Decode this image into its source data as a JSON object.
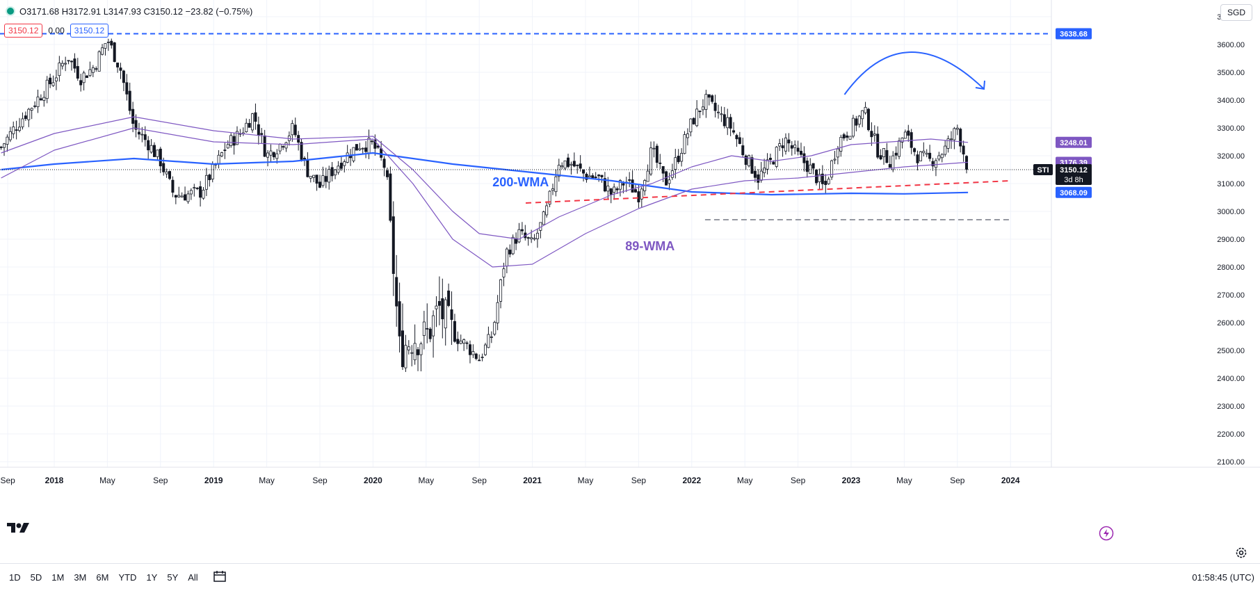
{
  "header": {
    "ohlc_text": "O3171.68 H3172.91 L3147.93 C3150.12 −23.82 (−0.75%)",
    "chip_left": "3150.12",
    "chip_mid": "0.00",
    "chip_right": "3150.12",
    "currency": "SGD"
  },
  "bottom": {
    "ranges": [
      "1D",
      "5D",
      "1M",
      "3M",
      "6M",
      "YTD",
      "1Y",
      "5Y",
      "All"
    ],
    "clock": "01:58:45 (UTC)"
  },
  "chart_data": {
    "type": "candlestick",
    "symbol": "STI",
    "ylim": [
      2080,
      3760
    ],
    "y_ticks": [
      2100,
      2200,
      2300,
      2400,
      2500,
      2600,
      2700,
      2800,
      2900,
      3000,
      3100,
      3200,
      3300,
      3400,
      3500,
      3600,
      3700
    ],
    "x_ticks": [
      {
        "label": "Sep",
        "t": -3.5
      },
      {
        "label": "2018",
        "t": 0
      },
      {
        "label": "May",
        "t": 4
      },
      {
        "label": "Sep",
        "t": 8
      },
      {
        "label": "2019",
        "t": 12
      },
      {
        "label": "May",
        "t": 16
      },
      {
        "label": "Sep",
        "t": 20
      },
      {
        "label": "2020",
        "t": 24
      },
      {
        "label": "May",
        "t": 28
      },
      {
        "label": "Sep",
        "t": 32
      },
      {
        "label": "2021",
        "t": 36
      },
      {
        "label": "May",
        "t": 40
      },
      {
        "label": "Sep",
        "t": 44
      },
      {
        "label": "2022",
        "t": 48
      },
      {
        "label": "May",
        "t": 52
      },
      {
        "label": "Sep",
        "t": 56
      },
      {
        "label": "2023",
        "t": 60
      },
      {
        "label": "May",
        "t": 64
      },
      {
        "label": "Sep",
        "t": 68
      },
      {
        "label": "2024",
        "t": 72
      }
    ],
    "x_tick_labels_note": "t = months since Jan 2018",
    "close_path": [
      [
        -4,
        3230
      ],
      [
        -3,
        3300
      ],
      [
        -2,
        3360
      ],
      [
        -1,
        3420
      ],
      [
        0,
        3480
      ],
      [
        1,
        3560
      ],
      [
        2,
        3480
      ],
      [
        3,
        3520
      ],
      [
        4,
        3620
      ],
      [
        5,
        3510
      ],
      [
        6,
        3300
      ],
      [
        7,
        3250
      ],
      [
        8,
        3180
      ],
      [
        9,
        3060
      ],
      [
        10,
        3060
      ],
      [
        11,
        3070
      ],
      [
        12,
        3150
      ],
      [
        13,
        3240
      ],
      [
        14,
        3280
      ],
      [
        15,
        3350
      ],
      [
        16,
        3200
      ],
      [
        17,
        3240
      ],
      [
        18,
        3300
      ],
      [
        19,
        3150
      ],
      [
        20,
        3090
      ],
      [
        21,
        3150
      ],
      [
        22,
        3200
      ],
      [
        23,
        3240
      ],
      [
        24,
        3240
      ],
      [
        25,
        3150
      ],
      [
        26,
        2500
      ],
      [
        27,
        2550
      ],
      [
        28,
        2550
      ],
      [
        29,
        2650
      ],
      [
        30,
        2560
      ],
      [
        31,
        2520
      ],
      [
        32,
        2470
      ],
      [
        33,
        2560
      ],
      [
        34,
        2850
      ],
      [
        35,
        2920
      ],
      [
        36,
        2880
      ],
      [
        37,
        2990
      ],
      [
        38,
        3180
      ],
      [
        39,
        3170
      ],
      [
        40,
        3130
      ],
      [
        41,
        3120
      ],
      [
        42,
        3060
      ],
      [
        43,
        3110
      ],
      [
        44,
        3060
      ],
      [
        45,
        3220
      ],
      [
        46,
        3100
      ],
      [
        47,
        3200
      ],
      [
        48,
        3320
      ],
      [
        49,
        3400
      ],
      [
        50,
        3350
      ],
      [
        51,
        3300
      ],
      [
        52,
        3200
      ],
      [
        53,
        3120
      ],
      [
        54,
        3180
      ],
      [
        55,
        3260
      ],
      [
        56,
        3200
      ],
      [
        57,
        3150
      ],
      [
        58,
        3080
      ],
      [
        59,
        3250
      ],
      [
        60,
        3300
      ],
      [
        61,
        3360
      ],
      [
        62,
        3220
      ],
      [
        63,
        3180
      ],
      [
        64,
        3280
      ],
      [
        65,
        3200
      ],
      [
        66,
        3180
      ],
      [
        67,
        3220
      ],
      [
        68,
        3300
      ],
      [
        68.8,
        3150.12
      ]
    ],
    "series": [
      {
        "name": "200-WMA",
        "color": "#2962ff",
        "width": 2.2,
        "points": [
          [
            -4,
            3150
          ],
          [
            0,
            3170
          ],
          [
            6,
            3190
          ],
          [
            12,
            3170
          ],
          [
            18,
            3180
          ],
          [
            24,
            3210
          ],
          [
            30,
            3170
          ],
          [
            36,
            3140
          ],
          [
            42,
            3110
          ],
          [
            48,
            3070
          ],
          [
            54,
            3060
          ],
          [
            60,
            3065
          ],
          [
            64,
            3063
          ],
          [
            68.8,
            3068.09
          ]
        ]
      },
      {
        "name": "89-WMA",
        "color": "#7e57c2",
        "width": 1.2,
        "points": [
          [
            -4,
            3120
          ],
          [
            0,
            3220
          ],
          [
            6,
            3300
          ],
          [
            12,
            3250
          ],
          [
            18,
            3240
          ],
          [
            24,
            3260
          ],
          [
            27,
            3100
          ],
          [
            30,
            2900
          ],
          [
            33,
            2800
          ],
          [
            36,
            2810
          ],
          [
            40,
            2920
          ],
          [
            44,
            3010
          ],
          [
            48,
            3080
          ],
          [
            52,
            3110
          ],
          [
            56,
            3120
          ],
          [
            60,
            3140
          ],
          [
            64,
            3160
          ],
          [
            68.8,
            3176.39
          ]
        ]
      },
      {
        "name": "",
        "color": "#7e57c2",
        "width": 1.2,
        "points": [
          [
            -4,
            3210
          ],
          [
            0,
            3280
          ],
          [
            6,
            3340
          ],
          [
            12,
            3290
          ],
          [
            18,
            3260
          ],
          [
            24,
            3270
          ],
          [
            27,
            3150
          ],
          [
            30,
            3000
          ],
          [
            32,
            2920
          ],
          [
            35,
            2900
          ],
          [
            38,
            2980
          ],
          [
            42,
            3060
          ],
          [
            45,
            3100
          ],
          [
            48,
            3160
          ],
          [
            51,
            3200
          ],
          [
            54,
            3180
          ],
          [
            57,
            3200
          ],
          [
            60,
            3240
          ],
          [
            63,
            3250
          ],
          [
            66,
            3260
          ],
          [
            68.8,
            3248.01
          ]
        ]
      }
    ],
    "price_labels": [
      {
        "value": "3638.68",
        "color": "#2962ff"
      },
      {
        "value": "3248.01",
        "color": "#7e57c2"
      },
      {
        "value": "3176.39",
        "color": "#7e57c2"
      },
      {
        "value": "3150.12",
        "color": "#131722",
        "sub": "3d 8h",
        "tag": "STI"
      },
      {
        "value": "3068.09",
        "color": "#2962ff"
      }
    ],
    "drawings": {
      "resistance_level": 3638.68,
      "support_dashed": {
        "t0": 49,
        "t1": 72,
        "value": 2970
      },
      "trendline": {
        "t0": 35.5,
        "v0": 3030,
        "t1": 72,
        "v1": 3110
      },
      "arrow_arc": {
        "t0": 59.5,
        "t_peak": 64,
        "t1": 70,
        "v0": 3420,
        "v_peak": 3575,
        "v1": 3440
      }
    },
    "annotations": [
      {
        "text": "200-WMA",
        "t": 33.0,
        "value": 3090,
        "color": "#2962ff"
      },
      {
        "text": "89-WMA",
        "t": 43.0,
        "value": 2860,
        "color": "#7e57c2"
      }
    ],
    "legend": "none",
    "grid": true
  }
}
